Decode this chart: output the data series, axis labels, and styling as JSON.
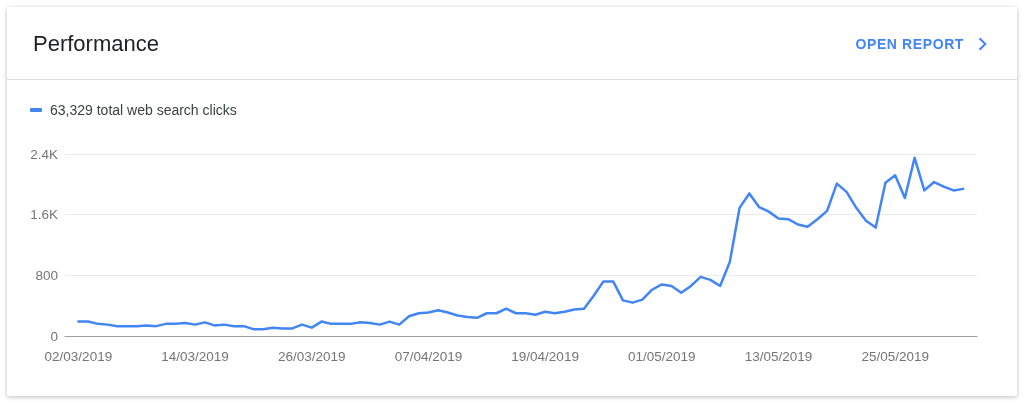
{
  "chart_data": {
    "type": "line",
    "title": "Performance",
    "annotations": [
      "OPEN REPORT"
    ],
    "x": [
      "2019-03-02",
      "2019-03-03",
      "2019-03-04",
      "2019-03-05",
      "2019-03-06",
      "2019-03-07",
      "2019-03-08",
      "2019-03-09",
      "2019-03-10",
      "2019-03-11",
      "2019-03-12",
      "2019-03-13",
      "2019-03-14",
      "2019-03-15",
      "2019-03-16",
      "2019-03-17",
      "2019-03-18",
      "2019-03-19",
      "2019-03-20",
      "2019-03-21",
      "2019-03-22",
      "2019-03-23",
      "2019-03-24",
      "2019-03-25",
      "2019-03-26",
      "2019-03-27",
      "2019-03-28",
      "2019-03-29",
      "2019-03-30",
      "2019-03-31",
      "2019-04-01",
      "2019-04-02",
      "2019-04-03",
      "2019-04-04",
      "2019-04-05",
      "2019-04-06",
      "2019-04-07",
      "2019-04-08",
      "2019-04-09",
      "2019-04-10",
      "2019-04-11",
      "2019-04-12",
      "2019-04-13",
      "2019-04-14",
      "2019-04-15",
      "2019-04-16",
      "2019-04-17",
      "2019-04-18",
      "2019-04-19",
      "2019-04-20",
      "2019-04-21",
      "2019-04-22",
      "2019-04-23",
      "2019-04-24",
      "2019-04-25",
      "2019-04-26",
      "2019-04-27",
      "2019-04-28",
      "2019-04-29",
      "2019-04-30",
      "2019-05-01",
      "2019-05-02",
      "2019-05-03",
      "2019-05-04",
      "2019-05-05",
      "2019-05-06",
      "2019-05-07",
      "2019-05-08",
      "2019-05-09",
      "2019-05-10",
      "2019-05-11",
      "2019-05-12",
      "2019-05-13",
      "2019-05-14",
      "2019-05-15",
      "2019-05-16",
      "2019-05-17",
      "2019-05-18",
      "2019-05-19",
      "2019-05-20",
      "2019-05-21",
      "2019-05-22",
      "2019-05-23",
      "2019-05-24",
      "2019-05-25",
      "2019-05-26",
      "2019-05-27",
      "2019-05-28",
      "2019-05-29",
      "2019-05-30",
      "2019-05-31",
      "2019-06-01"
    ],
    "series": [
      {
        "name": "63,329 total web search clicks",
        "color": "#4285f4",
        "values": [
          190,
          190,
          160,
          150,
          130,
          130,
          130,
          140,
          130,
          160,
          160,
          170,
          150,
          180,
          140,
          150,
          130,
          130,
          90,
          90,
          110,
          100,
          100,
          150,
          110,
          190,
          160,
          160,
          160,
          180,
          170,
          150,
          190,
          150,
          260,
          300,
          310,
          340,
          310,
          270,
          250,
          240,
          300,
          300,
          360,
          300,
          300,
          280,
          320,
          300,
          320,
          350,
          360,
          530,
          720,
          720,
          470,
          440,
          480,
          610,
          680,
          660,
          570,
          660,
          780,
          740,
          660,
          980,
          1690,
          1880,
          1700,
          1640,
          1550,
          1540,
          1470,
          1440,
          1540,
          1650,
          2010,
          1900,
          1690,
          1520,
          1430,
          2020,
          2120,
          1820,
          2350,
          1920,
          2030,
          1970,
          1920,
          1940
        ]
      }
    ],
    "xlim": [
      "2019-02-28T15:00",
      "2019-06-02T10:00"
    ],
    "xticks": [
      {
        "value": "2019-03-02",
        "label": "02/03/2019"
      },
      {
        "value": "2019-03-14",
        "label": "14/03/2019"
      },
      {
        "value": "2019-03-26",
        "label": "26/03/2019"
      },
      {
        "value": "2019-04-07",
        "label": "07/04/2019"
      },
      {
        "value": "2019-04-19",
        "label": "19/04/2019"
      },
      {
        "value": "2019-05-01",
        "label": "01/05/2019"
      },
      {
        "value": "2019-05-13",
        "label": "13/05/2019"
      },
      {
        "value": "2019-05-25",
        "label": "25/05/2019"
      }
    ],
    "ylim": [
      0,
      2400
    ],
    "yticks": [
      0,
      800,
      {
        "value": 1600,
        "label": "1.6K"
      },
      {
        "value": 2400,
        "label": "2.4K"
      }
    ],
    "grid": "y",
    "legend": "top left",
    "marker": "none",
    "line_style": "solid"
  }
}
